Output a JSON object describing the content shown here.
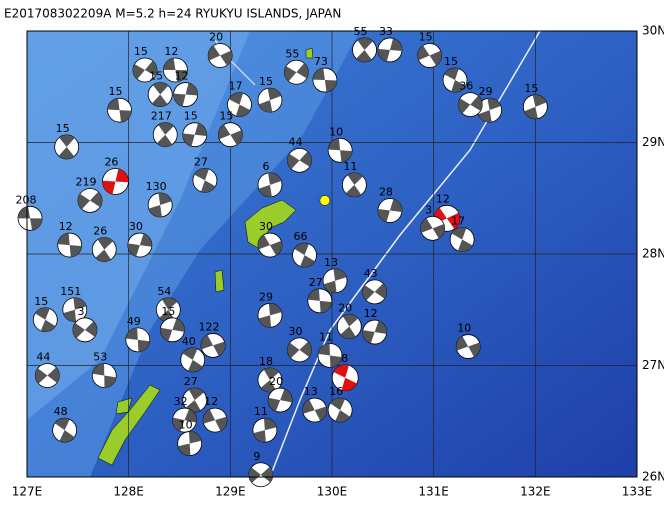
{
  "chart_data": {
    "type": "focal-map",
    "title": "E201708302209A M=5.2 h=24 RYUKYU ISLANDS, JAPAN",
    "xlim": [
      127,
      133
    ],
    "ylim": [
      26,
      30
    ],
    "xticks": [
      {
        "value": 127,
        "label": "127E"
      },
      {
        "value": 128,
        "label": "128E"
      },
      {
        "value": 129,
        "label": "129E"
      },
      {
        "value": 130,
        "label": "130E"
      },
      {
        "value": 131,
        "label": "131E"
      },
      {
        "value": 132,
        "label": "132E"
      },
      {
        "value": 133,
        "label": "133E"
      }
    ],
    "yticks": [
      {
        "value": 26,
        "label": "26N"
      },
      {
        "value": 27,
        "label": "27N"
      },
      {
        "value": 28,
        "label": "28N"
      },
      {
        "value": 29,
        "label": "29N"
      },
      {
        "value": 30,
        "label": "30N"
      }
    ],
    "grid": true,
    "ball_color": "#555555",
    "highlight_color": "#e01010",
    "epicenter_color": "#ffff00",
    "epicenter": {
      "lon": 129.93,
      "lat": 28.48
    },
    "events": [
      {
        "lon": 127.03,
        "lat": 28.32,
        "depth": 208
      },
      {
        "lon": 127.39,
        "lat": 28.96,
        "depth": 15
      },
      {
        "lon": 127.87,
        "lat": 28.65,
        "depth": 26,
        "highlight": true
      },
      {
        "lon": 131.13,
        "lat": 28.32,
        "depth": 12,
        "highlight": true
      },
      {
        "lon": 130.13,
        "lat": 26.89,
        "depth": 18,
        "highlight": true
      },
      {
        "lon": 132.0,
        "lat": 29.32,
        "depth": 15
      },
      {
        "lon": 128.16,
        "lat": 29.65,
        "depth": 15
      },
      {
        "lon": 128.46,
        "lat": 29.65,
        "depth": 12
      },
      {
        "lon": 128.31,
        "lat": 29.43,
        "depth": 15
      },
      {
        "lon": 128.56,
        "lat": 29.43,
        "depth": 12
      },
      {
        "lon": 128.9,
        "lat": 29.78,
        "depth": 20
      },
      {
        "lon": 129.09,
        "lat": 29.34,
        "depth": 17
      },
      {
        "lon": 129.39,
        "lat": 29.38,
        "depth": 15
      },
      {
        "lon": 129.65,
        "lat": 29.63,
        "depth": 55
      },
      {
        "lon": 129.93,
        "lat": 29.56,
        "depth": 73
      },
      {
        "lon": 130.32,
        "lat": 29.83,
        "depth": 55
      },
      {
        "lon": 130.57,
        "lat": 29.83,
        "depth": 33
      },
      {
        "lon": 130.96,
        "lat": 29.78,
        "depth": 15
      },
      {
        "lon": 131.21,
        "lat": 29.56,
        "depth": 15
      },
      {
        "lon": 131.55,
        "lat": 29.29,
        "depth": 29
      },
      {
        "lon": 131.36,
        "lat": 29.34,
        "depth": 36
      },
      {
        "lon": 127.91,
        "lat": 29.29,
        "depth": 15
      },
      {
        "lon": 128.36,
        "lat": 29.07,
        "depth": 217
      },
      {
        "lon": 128.65,
        "lat": 29.07,
        "depth": 15
      },
      {
        "lon": 129.0,
        "lat": 29.07,
        "depth": 15
      },
      {
        "lon": 128.75,
        "lat": 28.66,
        "depth": 27
      },
      {
        "lon": 129.39,
        "lat": 28.62,
        "depth": 6
      },
      {
        "lon": 129.68,
        "lat": 28.84,
        "depth": 44
      },
      {
        "lon": 130.08,
        "lat": 28.93,
        "depth": 10
      },
      {
        "lon": 130.22,
        "lat": 28.62,
        "depth": 11
      },
      {
        "lon": 130.57,
        "lat": 28.39,
        "depth": 28
      },
      {
        "lon": 130.99,
        "lat": 28.23,
        "depth": 3
      },
      {
        "lon": 131.28,
        "lat": 28.13,
        "depth": 17
      },
      {
        "lon": 128.31,
        "lat": 28.44,
        "depth": 130
      },
      {
        "lon": 127.62,
        "lat": 28.48,
        "depth": 219
      },
      {
        "lon": 127.42,
        "lat": 28.08,
        "depth": 12
      },
      {
        "lon": 127.76,
        "lat": 28.04,
        "depth": 26
      },
      {
        "lon": 128.11,
        "lat": 28.08,
        "depth": 30
      },
      {
        "lon": 129.39,
        "lat": 28.08,
        "depth": 30
      },
      {
        "lon": 129.73,
        "lat": 27.99,
        "depth": 66
      },
      {
        "lon": 130.03,
        "lat": 27.76,
        "depth": 13
      },
      {
        "lon": 130.42,
        "lat": 27.66,
        "depth": 43
      },
      {
        "lon": 129.88,
        "lat": 27.58,
        "depth": 27
      },
      {
        "lon": 130.17,
        "lat": 27.35,
        "depth": 20
      },
      {
        "lon": 130.42,
        "lat": 27.3,
        "depth": 12
      },
      {
        "lon": 131.34,
        "lat": 27.17,
        "depth": 10
      },
      {
        "lon": 127.18,
        "lat": 27.41,
        "depth": 15
      },
      {
        "lon": 127.47,
        "lat": 27.5,
        "depth": 151
      },
      {
        "lon": 127.57,
        "lat": 27.32,
        "depth": 3
      },
      {
        "lon": 128.09,
        "lat": 27.23,
        "depth": 49
      },
      {
        "lon": 128.39,
        "lat": 27.5,
        "depth": 54
      },
      {
        "lon": 128.43,
        "lat": 27.32,
        "depth": 15
      },
      {
        "lon": 128.83,
        "lat": 27.18,
        "depth": 122
      },
      {
        "lon": 128.63,
        "lat": 27.05,
        "depth": 40
      },
      {
        "lon": 129.39,
        "lat": 27.45,
        "depth": 29
      },
      {
        "lon": 129.68,
        "lat": 27.14,
        "depth": 30
      },
      {
        "lon": 129.98,
        "lat": 27.09,
        "depth": 11
      },
      {
        "lon": 129.39,
        "lat": 26.87,
        "depth": 18
      },
      {
        "lon": 129.49,
        "lat": 26.69,
        "depth": 20
      },
      {
        "lon": 129.83,
        "lat": 26.6,
        "depth": 13
      },
      {
        "lon": 130.08,
        "lat": 26.6,
        "depth": 16
      },
      {
        "lon": 129.34,
        "lat": 26.42,
        "depth": 11
      },
      {
        "lon": 127.2,
        "lat": 26.91,
        "depth": 44
      },
      {
        "lon": 127.76,
        "lat": 26.91,
        "depth": 53
      },
      {
        "lon": 128.65,
        "lat": 26.69,
        "depth": 27
      },
      {
        "lon": 128.55,
        "lat": 26.51,
        "depth": 32
      },
      {
        "lon": 128.85,
        "lat": 26.51,
        "depth": 12
      },
      {
        "lon": 127.37,
        "lat": 26.42,
        "depth": 48
      },
      {
        "lon": 128.6,
        "lat": 26.3,
        "depth": 10
      },
      {
        "lon": 129.3,
        "lat": 26.02,
        "depth": 9
      }
    ]
  }
}
